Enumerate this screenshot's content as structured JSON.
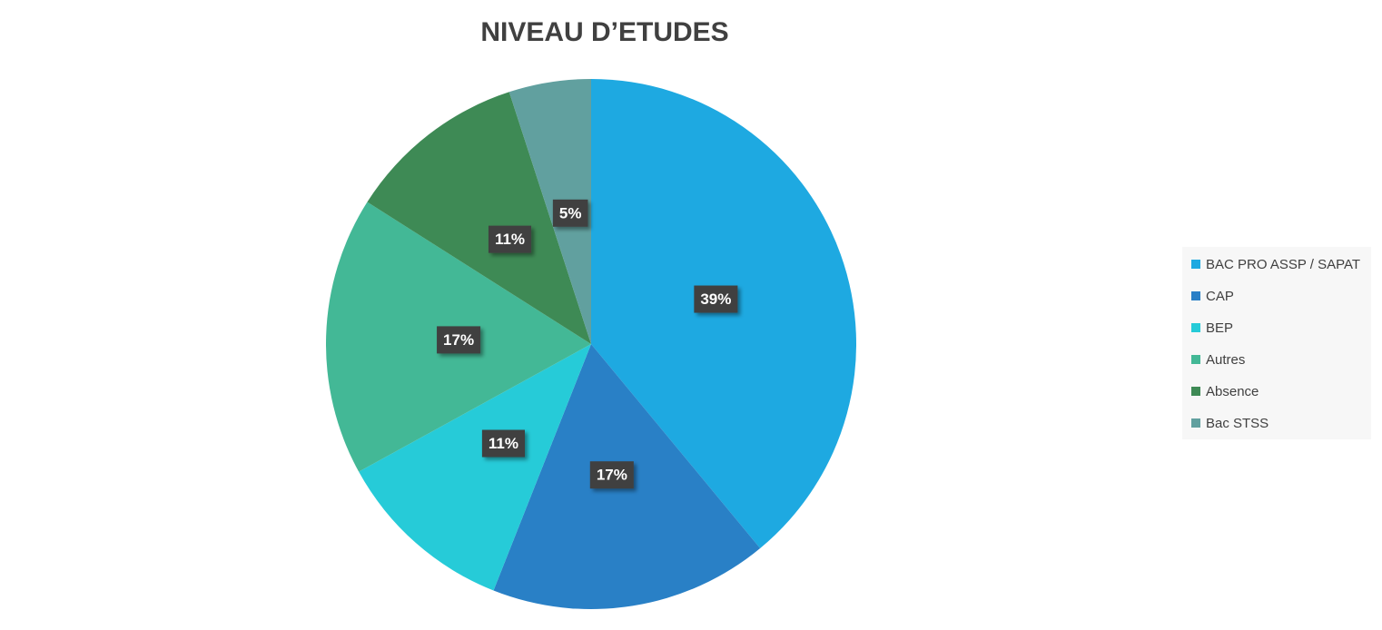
{
  "chart_data": {
    "type": "pie",
    "title": "NIVEAU D’ETUDES",
    "categories": [
      "BAC PRO ASSP / SAPAT",
      "CAP",
      "BEP",
      "Autres",
      "Absence",
      "Bac STSS"
    ],
    "values": [
      39,
      17,
      11,
      17,
      11,
      5
    ],
    "value_labels": [
      "39%",
      "17%",
      "11%",
      "17%",
      "11%",
      "5%"
    ],
    "colors": [
      "#1ea9e1",
      "#2980c6",
      "#26cbd8",
      "#43b896",
      "#3e8a55",
      "#61a09f"
    ],
    "legend": "right"
  }
}
